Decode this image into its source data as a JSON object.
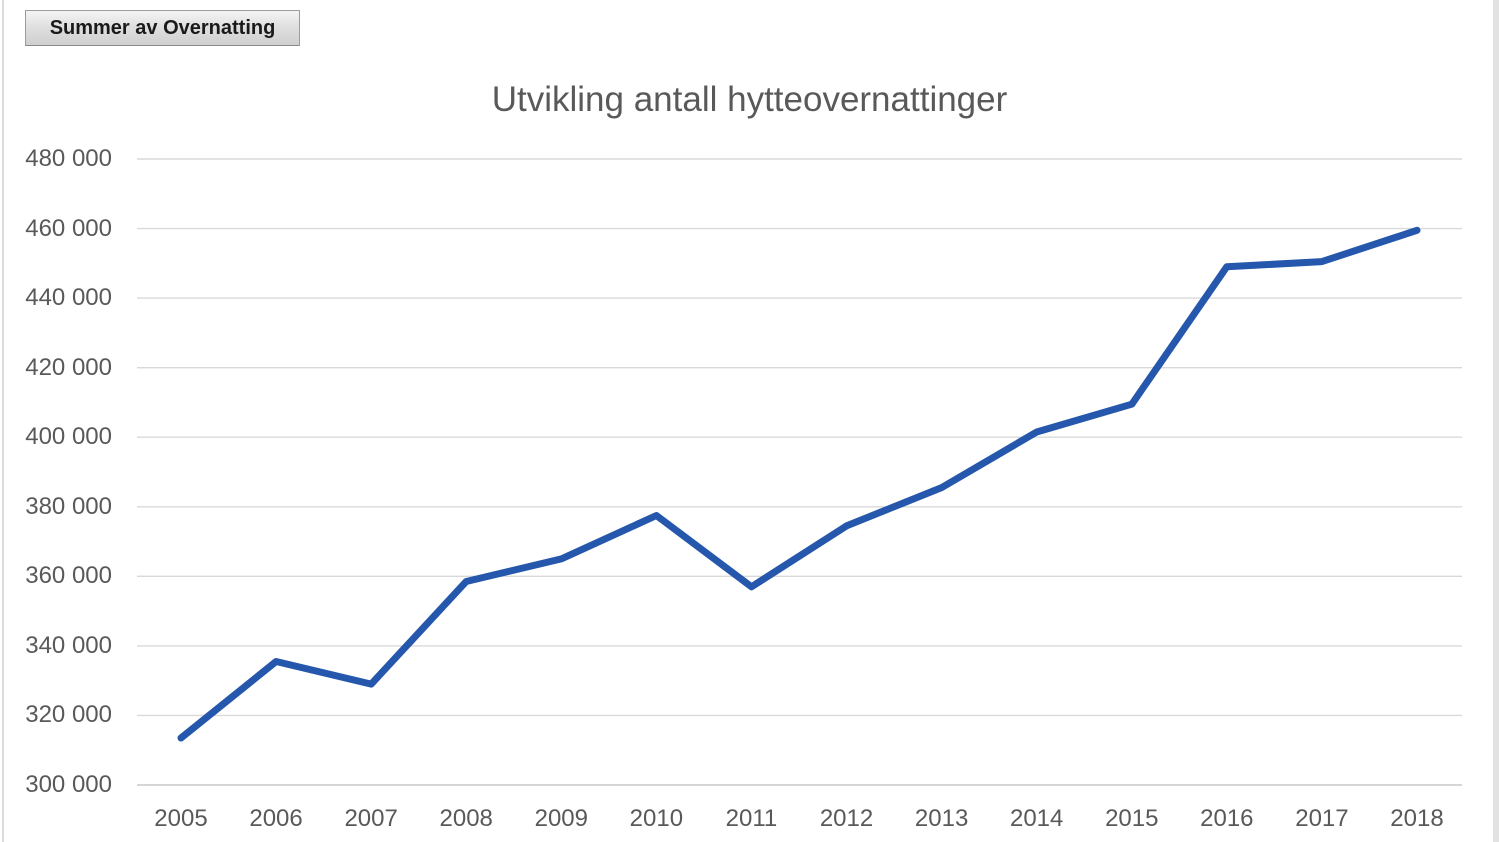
{
  "pivot_button": {
    "label": "Summer av Overnatting"
  },
  "chart_data": {
    "type": "line",
    "title": "Utvikling antall hytteovernattinger",
    "xlabel": "",
    "ylabel": "",
    "categories": [
      "2005",
      "2006",
      "2007",
      "2008",
      "2009",
      "2010",
      "2011",
      "2012",
      "2013",
      "2014",
      "2015",
      "2016",
      "2017",
      "2018"
    ],
    "series": [
      {
        "name": "Summer av Overnatting",
        "color": "#2557AC",
        "values": [
          313500,
          335500,
          329000,
          358500,
          365000,
          377500,
          357000,
          374500,
          385500,
          401500,
          409500,
          449000,
          450500,
          459500
        ]
      }
    ],
    "ylim": [
      300000,
      480000
    ],
    "ytick_step": 20000,
    "yticks": [
      {
        "value": 300000,
        "label": "300 000"
      },
      {
        "value": 320000,
        "label": "320 000"
      },
      {
        "value": 340000,
        "label": "340 000"
      },
      {
        "value": 360000,
        "label": "360 000"
      },
      {
        "value": 380000,
        "label": "380 000"
      },
      {
        "value": 400000,
        "label": "400 000"
      },
      {
        "value": 420000,
        "label": "420 000"
      },
      {
        "value": 440000,
        "label": "440 000"
      },
      {
        "value": 460000,
        "label": "460 000"
      },
      {
        "value": 480000,
        "label": "480 000"
      }
    ],
    "grid": true,
    "legend_position": "none",
    "colors": {
      "gridline": "#D9D9D9",
      "axis_line": "#C9C9C9",
      "tick_label": "#595959",
      "title": "#595959"
    }
  }
}
